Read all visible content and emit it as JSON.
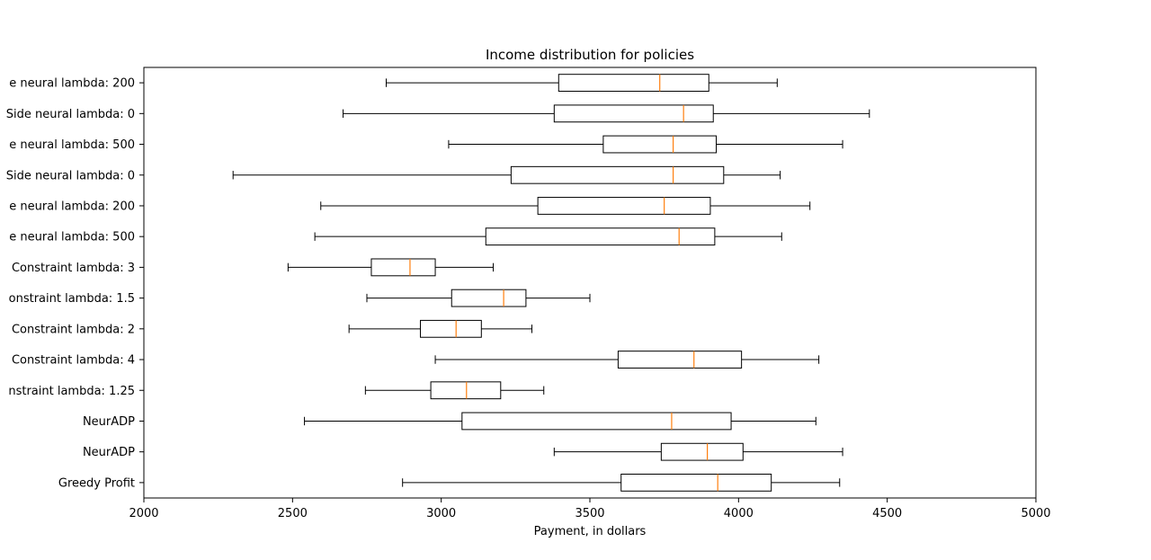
{
  "chart_data": {
    "type": "boxplot",
    "orientation": "horizontal",
    "title": "Income distribution for policies",
    "xlabel": "Payment, in dollars",
    "ylabel": "",
    "xlim": [
      2000,
      5000
    ],
    "xticks": [
      2000,
      2500,
      3000,
      3500,
      4000,
      4500,
      5000
    ],
    "grid": false,
    "colors": {
      "box": "#000000",
      "median": "#ff7f0e"
    },
    "boxes": [
      {
        "label": "e neural lambda: 200",
        "whisker_low": 2815,
        "q1": 3395,
        "median": 3735,
        "q3": 3900,
        "whisker_high": 4130
      },
      {
        "label": "Side neural lambda: 0",
        "whisker_low": 2670,
        "q1": 3380,
        "median": 3815,
        "q3": 3915,
        "whisker_high": 4440
      },
      {
        "label": "e neural lambda: 500",
        "whisker_low": 3025,
        "q1": 3545,
        "median": 3780,
        "q3": 3925,
        "whisker_high": 4350
      },
      {
        "label": "Side neural lambda: 0",
        "whisker_low": 2300,
        "q1": 3235,
        "median": 3780,
        "q3": 3950,
        "whisker_high": 4140
      },
      {
        "label": "e neural lambda: 200",
        "whisker_low": 2595,
        "q1": 3325,
        "median": 3750,
        "q3": 3905,
        "whisker_high": 4240
      },
      {
        "label": "e neural lambda: 500",
        "whisker_low": 2575,
        "q1": 3150,
        "median": 3800,
        "q3": 3920,
        "whisker_high": 4145
      },
      {
        "label": "Constraint lambda: 3",
        "whisker_low": 2485,
        "q1": 2765,
        "median": 2895,
        "q3": 2980,
        "whisker_high": 3175
      },
      {
        "label": "onstraint lambda: 1.5",
        "whisker_low": 2750,
        "q1": 3035,
        "median": 3210,
        "q3": 3285,
        "whisker_high": 3500
      },
      {
        "label": "Constraint lambda: 2",
        "whisker_low": 2690,
        "q1": 2930,
        "median": 3050,
        "q3": 3135,
        "whisker_high": 3305
      },
      {
        "label": "Constraint lambda: 4",
        "whisker_low": 2980,
        "q1": 3595,
        "median": 3850,
        "q3": 4010,
        "whisker_high": 4270
      },
      {
        "label": "nstraint lambda: 1.25",
        "whisker_low": 2745,
        "q1": 2965,
        "median": 3085,
        "q3": 3200,
        "whisker_high": 3345
      },
      {
        "label": "NeurADP",
        "whisker_low": 2540,
        "q1": 3070,
        "median": 3775,
        "q3": 3975,
        "whisker_high": 4260
      },
      {
        "label": "NeurADP",
        "whisker_low": 3380,
        "q1": 3740,
        "median": 3895,
        "q3": 4015,
        "whisker_high": 4350
      },
      {
        "label": "Greedy Profit",
        "whisker_low": 2870,
        "q1": 3605,
        "median": 3930,
        "q3": 4110,
        "whisker_high": 4340
      }
    ]
  }
}
